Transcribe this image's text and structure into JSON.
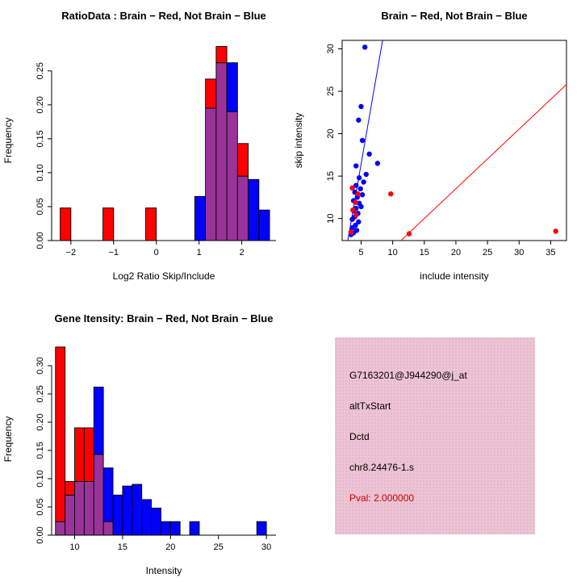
{
  "colors": {
    "red": "#FF0000",
    "blue": "#0000FF",
    "overlap": "#993399",
    "panel_pink": "#ECC4D3",
    "pval_red": "#CC0000"
  },
  "chart_data": [
    {
      "type": "histogram",
      "title": "RatioData : Brain − Red, Not Brain − Blue",
      "xlabel": "Log2 Ratio Skip/Include",
      "ylabel": "Frequency",
      "xlim": [
        -2.45,
        2.8
      ],
      "ylim": [
        0,
        0.295
      ],
      "xticks": [
        -2,
        -1,
        0,
        1,
        2
      ],
      "xtick_labels": [
        "−2",
        "−1",
        "0",
        "1",
        "2"
      ],
      "yticks": [
        0,
        0.05,
        0.1,
        0.15,
        0.2,
        0.25
      ],
      "ytick_labels": [
        "0.00",
        "0.05",
        "0.10",
        "0.15",
        "0.20",
        "0.25"
      ],
      "legend": [
        {
          "name": "Brain",
          "color": "red"
        },
        {
          "name": "Not Brain",
          "color": "blue"
        }
      ],
      "bins": [
        {
          "x0": -2.25,
          "x1": -2.0,
          "red": 0.048,
          "blue": 0
        },
        {
          "x0": -1.25,
          "x1": -1.0,
          "red": 0.048,
          "blue": 0
        },
        {
          "x0": -0.25,
          "x1": 0.0,
          "red": 0.048,
          "blue": 0
        },
        {
          "x0": 0.9,
          "x1": 1.15,
          "red": 0,
          "blue": 0.065
        },
        {
          "x0": 1.15,
          "x1": 1.4,
          "red": 0.238,
          "blue": 0.195
        },
        {
          "x0": 1.4,
          "x1": 1.65,
          "red": 0.286,
          "blue": 0.262
        },
        {
          "x0": 1.65,
          "x1": 1.9,
          "red": 0.19,
          "blue": 0.262
        },
        {
          "x0": 1.9,
          "x1": 2.15,
          "red": 0.143,
          "blue": 0.095
        },
        {
          "x0": 2.15,
          "x1": 2.4,
          "red": 0,
          "blue": 0.09
        },
        {
          "x0": 2.4,
          "x1": 2.65,
          "red": 0,
          "blue": 0.045
        }
      ]
    },
    {
      "type": "scatter",
      "title": "Brain − Red, Not Brain − Blue",
      "xlabel": "include intensity",
      "ylabel": "skip intensity",
      "xlim": [
        2,
        37.5
      ],
      "ylim": [
        7.4,
        31
      ],
      "xticks": [
        5,
        10,
        15,
        20,
        25,
        30,
        35
      ],
      "xtick_labels": [
        "5",
        "10",
        "15",
        "20",
        "25",
        "30",
        "35"
      ],
      "yticks": [
        10,
        15,
        20,
        25,
        30
      ],
      "ytick_labels": [
        "10",
        "15",
        "20",
        "25",
        "30"
      ],
      "series": [
        {
          "name": "Not Brain",
          "color": "blue",
          "points": [
            [
              5.6,
              30.2
            ],
            [
              5.0,
              23.2
            ],
            [
              4.6,
              21.6
            ],
            [
              5.2,
              19.2
            ],
            [
              6.3,
              17.6
            ],
            [
              7.6,
              16.5
            ],
            [
              4.2,
              16.2
            ],
            [
              5.8,
              15.2
            ],
            [
              4.7,
              14.8
            ],
            [
              5.4,
              14.3
            ],
            [
              4.2,
              13.9
            ],
            [
              4.9,
              13.5
            ],
            [
              4.0,
              13.1
            ],
            [
              5.2,
              12.8
            ],
            [
              4.4,
              12.5
            ],
            [
              3.8,
              12.1
            ],
            [
              4.7,
              11.8
            ],
            [
              5.0,
              11.4
            ],
            [
              4.2,
              11.2
            ],
            [
              3.8,
              10.9
            ],
            [
              4.5,
              10.6
            ],
            [
              4.0,
              10.2
            ],
            [
              3.6,
              9.9
            ],
            [
              4.6,
              9.6
            ],
            [
              4.1,
              9.2
            ],
            [
              3.6,
              8.9
            ],
            [
              4.3,
              8.6
            ],
            [
              3.8,
              8.3
            ],
            [
              3.4,
              8.1
            ]
          ]
        },
        {
          "name": "Brain",
          "color": "red",
          "points": [
            [
              3.6,
              13.6
            ],
            [
              4.5,
              12.9
            ],
            [
              9.7,
              12.9
            ],
            [
              4.1,
              11.9
            ],
            [
              3.7,
              11.0
            ],
            [
              4.2,
              10.4
            ],
            [
              3.4,
              8.4
            ],
            [
              12.6,
              8.2
            ],
            [
              35.8,
              8.5
            ]
          ]
        }
      ],
      "lines": [
        {
          "x1": 2.9,
          "y1": 7.4,
          "x2": 8.4,
          "y2": 31,
          "color": "blue"
        },
        {
          "x1": 11.3,
          "y1": 7.4,
          "x2": 37.5,
          "y2": 25.8,
          "color": "red"
        }
      ]
    },
    {
      "type": "histogram",
      "title": "Gene Itensity: Brain − Red, Not Brain − Blue",
      "xlabel": "Intensity",
      "ylabel": "Frequency",
      "xlim": [
        7.6,
        31
      ],
      "ylim": [
        0,
        0.34
      ],
      "xticks": [
        10,
        15,
        20,
        25,
        30
      ],
      "xtick_labels": [
        "10",
        "15",
        "20",
        "25",
        "30"
      ],
      "yticks": [
        0,
        0.05,
        0.1,
        0.15,
        0.2,
        0.25,
        0.3
      ],
      "ytick_labels": [
        "0.00",
        "0.05",
        "0.10",
        "0.15",
        "0.20",
        "0.25",
        "0.30"
      ],
      "legend": [
        {
          "name": "Brain",
          "color": "red"
        },
        {
          "name": "Not Brain",
          "color": "blue"
        }
      ],
      "bins": [
        {
          "x0": 8,
          "x1": 9,
          "red": 0.333,
          "blue": 0.024
        },
        {
          "x0": 9,
          "x1": 10,
          "red": 0.095,
          "blue": 0.071
        },
        {
          "x0": 10,
          "x1": 11,
          "red": 0.19,
          "blue": 0.095
        },
        {
          "x0": 11,
          "x1": 12,
          "red": 0.19,
          "blue": 0.095
        },
        {
          "x0": 12,
          "x1": 13,
          "red": 0.143,
          "blue": 0.262
        },
        {
          "x0": 13,
          "x1": 14,
          "red": 0.024,
          "blue": 0.119
        },
        {
          "x0": 14,
          "x1": 15,
          "red": 0,
          "blue": 0.071
        },
        {
          "x0": 15,
          "x1": 16,
          "red": 0,
          "blue": 0.087
        },
        {
          "x0": 16,
          "x1": 17,
          "red": 0,
          "blue": 0.09
        },
        {
          "x0": 17,
          "x1": 18,
          "red": 0,
          "blue": 0.063
        },
        {
          "x0": 18,
          "x1": 19,
          "red": 0,
          "blue": 0.048
        },
        {
          "x0": 19,
          "x1": 20,
          "red": 0,
          "blue": 0.024
        },
        {
          "x0": 20,
          "x1": 21,
          "red": 0,
          "blue": 0.024
        },
        {
          "x0": 22,
          "x1": 23,
          "red": 0,
          "blue": 0.024
        },
        {
          "x0": 29,
          "x1": 30,
          "red": 0,
          "blue": 0.024
        }
      ]
    }
  ],
  "info_panel": {
    "lines": [
      "G7163201@J944290@j_at",
      "altTxStart",
      "Dctd",
      "chr8.24476-1.s"
    ],
    "pval": "Pval: 2.000000"
  }
}
